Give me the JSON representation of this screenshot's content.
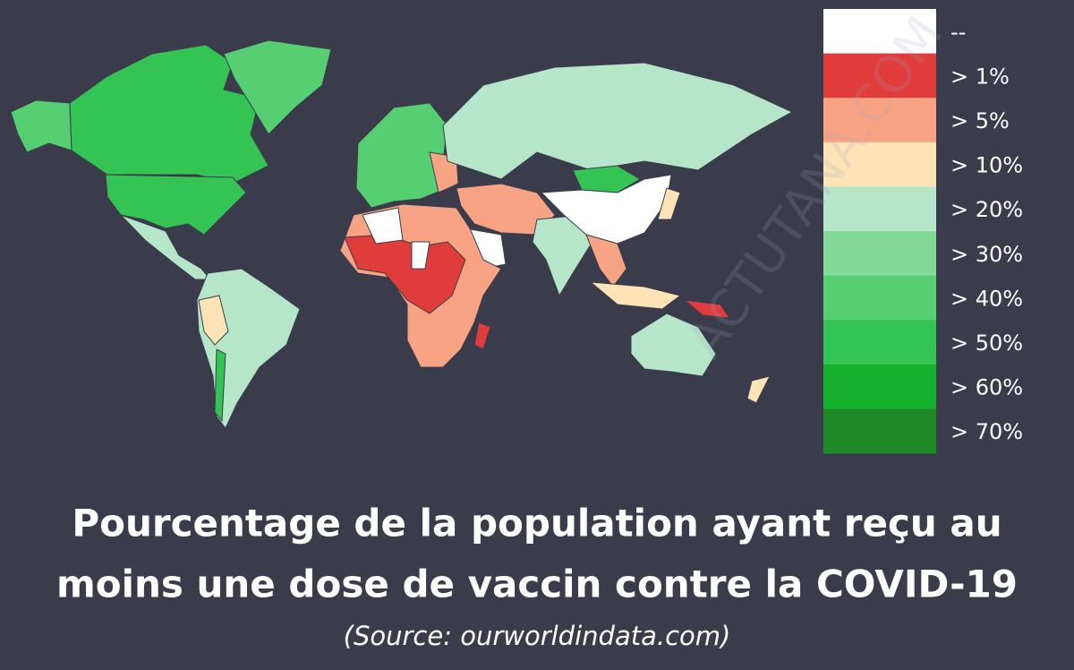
{
  "legend": {
    "items": [
      {
        "label": "--",
        "color": "#ffffff"
      },
      {
        "label": "> 1%",
        "color": "#e03c3c"
      },
      {
        "label": "> 5%",
        "color": "#f7a384"
      },
      {
        "label": "> 10%",
        "color": "#fde3b6"
      },
      {
        "label": "> 20%",
        "color": "#b5e6c9"
      },
      {
        "label": "> 30%",
        "color": "#82da98"
      },
      {
        "label": "> 40%",
        "color": "#55cf71"
      },
      {
        "label": "> 50%",
        "color": "#33c454"
      },
      {
        "label": "> 60%",
        "color": "#16b22e"
      },
      {
        "label": "> 70%",
        "color": "#1f8a26"
      }
    ]
  },
  "title_lines": [
    "Pourcentage de la population ayant reçu au",
    "moins une dose de vaccin contre la COVID-19"
  ],
  "source": "(Source: ourworldindata.com)",
  "watermark": "ACTUTANA.COM"
}
